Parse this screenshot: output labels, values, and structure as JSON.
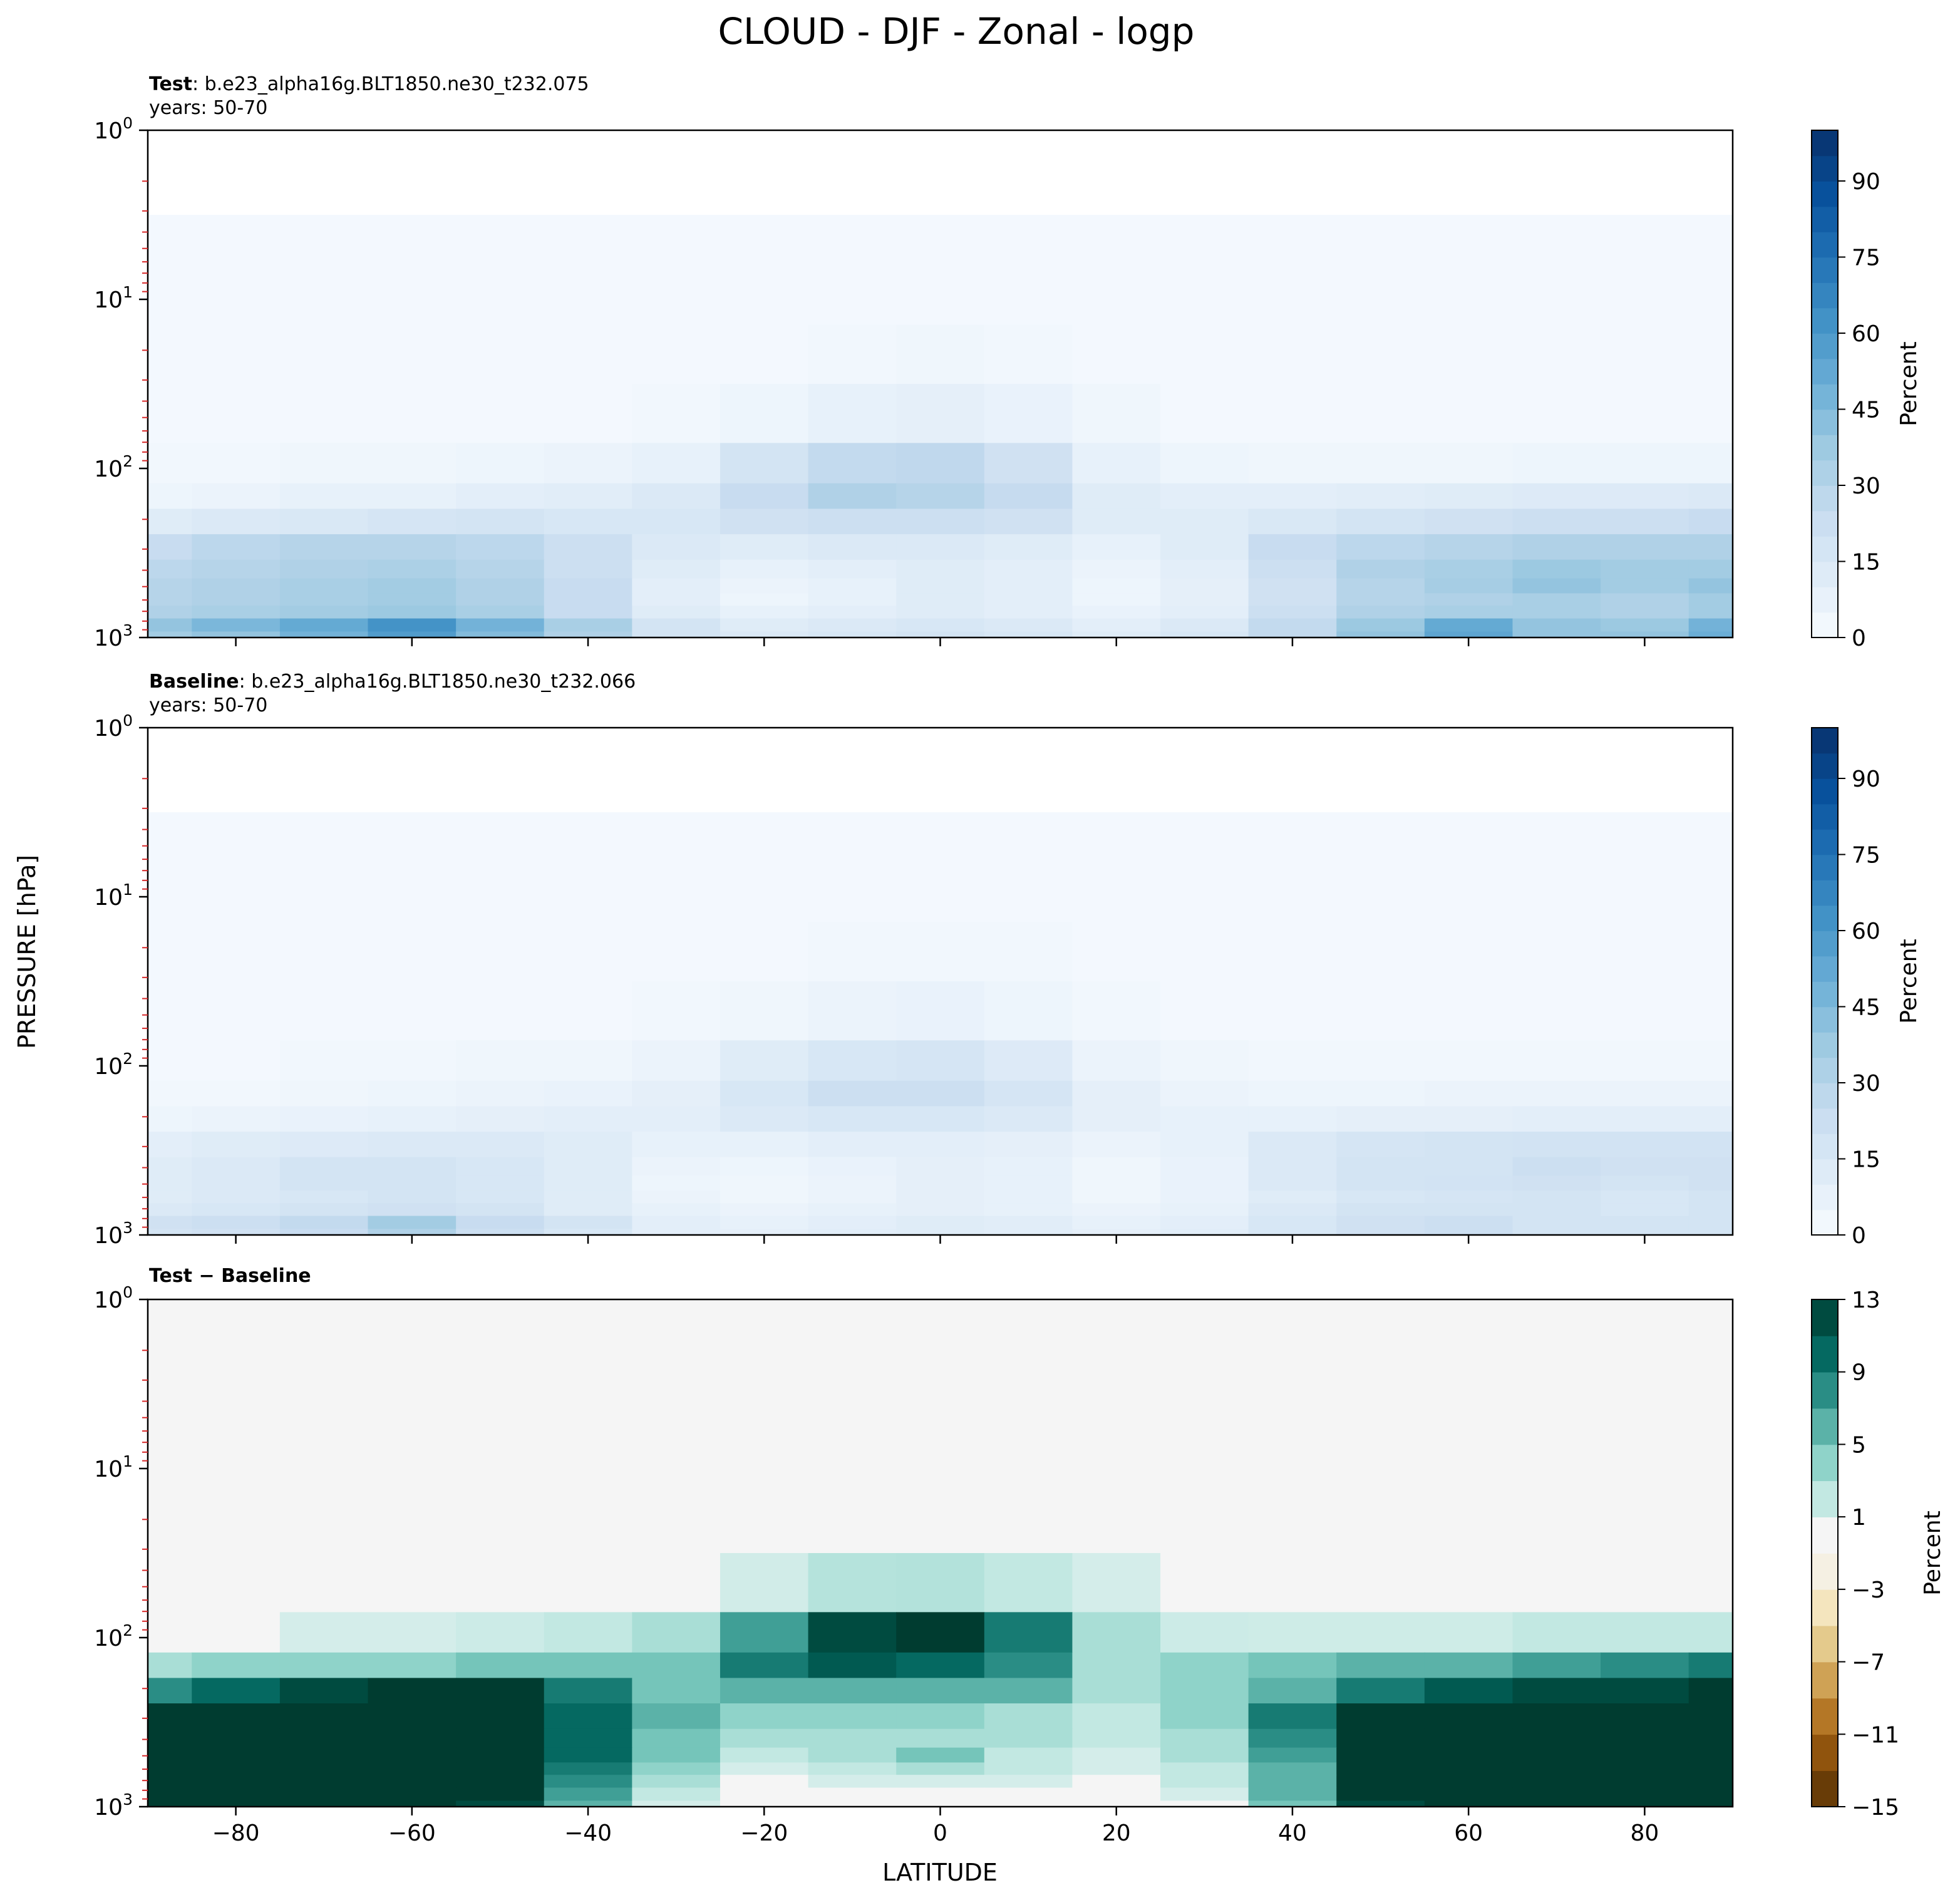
{
  "figure": {
    "title": "CLOUD - DJF - Zonal - logp",
    "shared_ylabel": "PRESSURE [hPa]",
    "shared_xlabel": "LATITUDE"
  },
  "chart_data": [
    {
      "type": "heatmap",
      "panel": "test",
      "title_bold": "Test",
      "title_rest": ": b.e23_alpha16g.BLT1850.ne30_t232.075",
      "subtitle": "years: 50-70",
      "x_ticks": [
        -80,
        -60,
        -40,
        -20,
        0,
        20,
        40,
        60,
        80
      ],
      "xlim": [
        -90,
        90
      ],
      "y_scale": "log",
      "ylim": [
        1000,
        1
      ],
      "y_ticks": [
        {
          "value": 1,
          "base": "10",
          "exp": "0"
        },
        {
          "value": 10,
          "base": "10",
          "exp": "1"
        },
        {
          "value": 100,
          "base": "10",
          "exp": "2"
        },
        {
          "value": 1000,
          "base": "10",
          "exp": "3"
        }
      ],
      "colorbar": {
        "label": "Percent",
        "ticks": [
          "0",
          "15",
          "30",
          "45",
          "60",
          "75",
          "90"
        ],
        "range": [
          0,
          100
        ],
        "colormap": "Blues"
      },
      "x": [
        -90,
        -80,
        -70,
        -60,
        -50,
        -40,
        -30,
        -20,
        -10,
        0,
        10,
        20,
        30,
        40,
        50,
        60,
        70,
        80,
        90
      ],
      "p": [
        1,
        2,
        5,
        10,
        20,
        50,
        100,
        150,
        200,
        300,
        400,
        500,
        600,
        700,
        850,
        1000
      ],
      "z": [
        [
          0,
          0,
          0,
          0,
          0,
          0,
          0,
          0,
          0,
          0,
          0,
          0,
          0,
          0,
          0,
          0,
          0,
          0,
          0
        ],
        [
          0,
          0,
          0,
          0,
          0,
          0,
          0,
          0,
          0,
          0,
          0,
          0,
          0,
          0,
          0,
          0,
          0,
          0,
          0
        ],
        [
          2,
          2,
          2,
          2,
          2,
          2,
          2,
          2,
          2,
          2,
          2,
          2,
          2,
          2,
          2,
          2,
          2,
          2,
          2
        ],
        [
          2,
          2,
          2,
          2,
          2,
          2,
          2,
          2,
          2,
          2,
          2,
          2,
          2,
          2,
          2,
          2,
          2,
          2,
          2
        ],
        [
          2,
          2,
          2,
          2,
          2,
          2,
          2,
          2,
          3,
          4,
          3,
          2,
          2,
          2,
          2,
          2,
          2,
          2,
          2
        ],
        [
          2,
          2,
          2,
          2,
          2,
          2,
          3,
          5,
          8,
          9,
          7,
          4,
          2,
          2,
          2,
          2,
          2,
          2,
          2
        ],
        [
          3,
          3,
          4,
          4,
          5,
          6,
          8,
          18,
          26,
          27,
          20,
          8,
          5,
          4,
          4,
          4,
          5,
          5,
          5
        ],
        [
          5,
          6,
          8,
          8,
          10,
          11,
          14,
          24,
          32,
          30,
          25,
          12,
          10,
          10,
          11,
          12,
          13,
          13,
          14
        ],
        [
          12,
          14,
          15,
          17,
          18,
          16,
          16,
          20,
          22,
          22,
          20,
          12,
          12,
          15,
          18,
          20,
          22,
          22,
          24
        ],
        [
          24,
          28,
          30,
          30,
          28,
          22,
          14,
          12,
          14,
          14,
          12,
          8,
          12,
          24,
          28,
          30,
          32,
          32,
          32
        ],
        [
          28,
          30,
          32,
          33,
          30,
          22,
          12,
          8,
          10,
          12,
          10,
          6,
          10,
          22,
          32,
          34,
          38,
          36,
          36
        ],
        [
          30,
          32,
          34,
          36,
          32,
          24,
          10,
          6,
          8,
          12,
          10,
          5,
          9,
          20,
          30,
          35,
          40,
          36,
          40
        ],
        [
          30,
          32,
          34,
          36,
          32,
          24,
          10,
          5,
          8,
          12,
          10,
          5,
          9,
          20,
          30,
          32,
          34,
          32,
          36
        ],
        [
          32,
          34,
          36,
          38,
          34,
          24,
          12,
          8,
          10,
          12,
          10,
          7,
          10,
          22,
          32,
          34,
          34,
          32,
          36
        ],
        [
          40,
          46,
          52,
          62,
          48,
          34,
          18,
          12,
          14,
          16,
          14,
          10,
          14,
          26,
          38,
          52,
          40,
          38,
          48
        ],
        [
          36,
          40,
          48,
          58,
          44,
          32,
          18,
          14,
          16,
          18,
          16,
          12,
          16,
          26,
          40,
          54,
          40,
          40,
          50
        ]
      ]
    },
    {
      "type": "heatmap",
      "panel": "baseline",
      "title_bold": "Baseline",
      "title_rest": ": b.e23_alpha16g.BLT1850.ne30_t232.066",
      "subtitle": "years: 50-70",
      "x_ticks": [
        -80,
        -60,
        -40,
        -20,
        0,
        20,
        40,
        60,
        80
      ],
      "xlim": [
        -90,
        90
      ],
      "y_scale": "log",
      "ylim": [
        1000,
        1
      ],
      "y_ticks": [
        {
          "value": 1,
          "base": "10",
          "exp": "0"
        },
        {
          "value": 10,
          "base": "10",
          "exp": "1"
        },
        {
          "value": 100,
          "base": "10",
          "exp": "2"
        },
        {
          "value": 1000,
          "base": "10",
          "exp": "3"
        }
      ],
      "colorbar": {
        "label": "Percent",
        "ticks": [
          "0",
          "15",
          "30",
          "45",
          "60",
          "75",
          "90"
        ],
        "range": [
          0,
          100
        ],
        "colormap": "Blues"
      },
      "x": [
        -90,
        -80,
        -70,
        -60,
        -50,
        -40,
        -30,
        -20,
        -10,
        0,
        10,
        20,
        30,
        40,
        50,
        60,
        70,
        80,
        90
      ],
      "p": [
        1,
        2,
        5,
        10,
        20,
        50,
        100,
        150,
        200,
        300,
        400,
        500,
        600,
        700,
        850,
        1000
      ],
      "z": [
        [
          0,
          0,
          0,
          0,
          0,
          0,
          0,
          0,
          0,
          0,
          0,
          0,
          0,
          0,
          0,
          0,
          0,
          0,
          0
        ],
        [
          0,
          0,
          0,
          0,
          0,
          0,
          0,
          0,
          0,
          0,
          0,
          0,
          0,
          0,
          0,
          0,
          0,
          0,
          0
        ],
        [
          2,
          2,
          2,
          2,
          2,
          2,
          2,
          2,
          2,
          2,
          2,
          2,
          2,
          2,
          2,
          2,
          2,
          2,
          2
        ],
        [
          2,
          2,
          2,
          2,
          2,
          2,
          2,
          2,
          2,
          2,
          2,
          2,
          2,
          2,
          2,
          2,
          2,
          2,
          2
        ],
        [
          2,
          2,
          2,
          2,
          2,
          2,
          2,
          2,
          3,
          3,
          3,
          2,
          2,
          2,
          2,
          2,
          2,
          2,
          2
        ],
        [
          2,
          2,
          2,
          2,
          2,
          2,
          3,
          4,
          6,
          7,
          5,
          3,
          2,
          2,
          2,
          2,
          2,
          2,
          2
        ],
        [
          2,
          2,
          3,
          3,
          4,
          4,
          6,
          12,
          16,
          17,
          13,
          6,
          4,
          3,
          3,
          3,
          3,
          3,
          3
        ],
        [
          3,
          3,
          4,
          5,
          6,
          7,
          9,
          16,
          22,
          22,
          17,
          9,
          6,
          5,
          5,
          6,
          6,
          6,
          6
        ],
        [
          5,
          6,
          7,
          8,
          9,
          10,
          10,
          14,
          16,
          16,
          14,
          9,
          8,
          8,
          9,
          9,
          10,
          10,
          10
        ],
        [
          10,
          12,
          13,
          14,
          14,
          12,
          8,
          8,
          10,
          10,
          9,
          6,
          8,
          14,
          17,
          18,
          19,
          19,
          19
        ],
        [
          12,
          14,
          18,
          18,
          16,
          12,
          6,
          5,
          7,
          9,
          8,
          4,
          7,
          14,
          18,
          18,
          22,
          20,
          20
        ],
        [
          12,
          14,
          18,
          18,
          16,
          12,
          5,
          4,
          6,
          9,
          8,
          4,
          7,
          14,
          18,
          19,
          20,
          18,
          20
        ],
        [
          12,
          14,
          16,
          18,
          16,
          12,
          6,
          4,
          6,
          9,
          8,
          4,
          7,
          12,
          16,
          17,
          18,
          16,
          18
        ],
        [
          14,
          16,
          18,
          20,
          18,
          12,
          8,
          6,
          8,
          9,
          8,
          6,
          8,
          14,
          18,
          18,
          18,
          16,
          18
        ],
        [
          20,
          22,
          26,
          36,
          24,
          18,
          10,
          8,
          10,
          12,
          11,
          8,
          10,
          16,
          20,
          22,
          18,
          18,
          18
        ],
        [
          18,
          20,
          24,
          32,
          22,
          16,
          10,
          9,
          11,
          12,
          11,
          9,
          11,
          16,
          20,
          22,
          18,
          18,
          18
        ]
      ]
    },
    {
      "type": "heatmap",
      "panel": "difference",
      "title_bold": "Test",
      "title_mid": " − ",
      "title_bold2": "Baseline",
      "x_ticks": [
        -80,
        -60,
        -40,
        -20,
        0,
        20,
        40,
        60,
        80
      ],
      "x_tick_labels": [
        "−80",
        "−60",
        "−40",
        "−20",
        "0",
        "20",
        "40",
        "60",
        "80"
      ],
      "xlim": [
        -90,
        90
      ],
      "y_scale": "log",
      "ylim": [
        1000,
        1
      ],
      "y_ticks": [
        {
          "value": 1,
          "base": "10",
          "exp": "0"
        },
        {
          "value": 10,
          "base": "10",
          "exp": "1"
        },
        {
          "value": 100,
          "base": "10",
          "exp": "2"
        },
        {
          "value": 1000,
          "base": "10",
          "exp": "3"
        }
      ],
      "colorbar": {
        "label": "Percent",
        "ticks": [
          "13",
          "9",
          "5",
          "1",
          "−3",
          "−7",
          "−11",
          "−15"
        ],
        "range": [
          -15,
          13
        ],
        "colormap": "BrBG"
      },
      "x": [
        -90,
        -80,
        -70,
        -60,
        -50,
        -40,
        -30,
        -20,
        -10,
        0,
        10,
        20,
        30,
        40,
        50,
        60,
        70,
        80,
        90
      ],
      "p": [
        1,
        2,
        5,
        10,
        20,
        50,
        100,
        150,
        200,
        300,
        400,
        500,
        600,
        700,
        850,
        1000
      ],
      "z": [
        [
          0,
          0,
          0,
          0,
          0,
          0,
          0,
          0,
          0,
          0,
          0,
          0,
          0,
          0,
          0,
          0,
          0,
          0,
          0
        ],
        [
          0,
          0,
          0,
          0,
          0,
          0,
          0,
          0,
          0,
          0,
          0,
          0,
          0,
          0,
          0,
          0,
          0,
          0,
          0
        ],
        [
          0.2,
          0.2,
          0.2,
          0.2,
          0.2,
          0.2,
          0.2,
          0.2,
          0.2,
          0.2,
          0.2,
          0.2,
          0.2,
          0.2,
          0.2,
          0.2,
          0.2,
          0.2,
          0.2
        ],
        [
          0.2,
          0.2,
          0.2,
          0.2,
          0.2,
          0.2,
          0.2,
          0.2,
          0.2,
          0.2,
          0.2,
          0.2,
          0.2,
          0.2,
          0.2,
          0.2,
          0.2,
          0.2,
          0.2
        ],
        [
          0.3,
          0.3,
          0.3,
          0.3,
          0.3,
          0.3,
          0.3,
          0.5,
          0.6,
          0.6,
          0.5,
          0.3,
          0.3,
          0.3,
          0.3,
          0.3,
          0.3,
          0.3,
          0.3
        ],
        [
          0.4,
          0.4,
          0.4,
          0.4,
          0.4,
          0.5,
          0.6,
          1.2,
          2.5,
          2.6,
          2,
          1,
          0.5,
          0.5,
          0.5,
          0.5,
          0.5,
          0.5,
          0.5
        ],
        [
          0.6,
          0.8,
          1,
          1,
          1.5,
          2,
          3,
          7,
          12,
          14,
          9,
          3,
          1.5,
          1.4,
          1.4,
          1.4,
          2,
          2,
          2
        ],
        [
          3,
          4,
          4,
          4,
          5,
          5,
          5,
          9,
          11,
          10,
          8,
          3,
          4,
          5,
          6,
          6,
          7,
          8,
          9
        ],
        [
          8,
          10,
          12,
          13,
          14,
          9,
          5,
          6,
          6,
          6,
          6,
          3,
          4,
          6,
          9,
          11,
          12,
          12,
          14
        ],
        [
          15,
          17,
          18,
          17,
          15,
          10,
          6,
          4,
          4,
          4,
          3,
          2,
          4,
          9,
          13,
          16,
          17,
          17,
          18
        ],
        [
          16,
          17,
          15,
          15,
          14,
          10,
          5,
          3,
          3,
          3,
          3,
          2,
          3,
          8,
          14,
          16,
          16,
          16,
          16
        ],
        [
          14,
          16,
          16,
          16,
          14,
          10,
          5,
          2,
          3,
          5,
          2,
          1,
          3,
          7,
          13,
          15,
          15,
          15,
          15
        ],
        [
          14,
          15,
          16,
          16,
          13,
          9,
          4,
          1,
          2,
          3,
          2,
          1,
          2,
          6,
          13,
          14,
          14,
          14,
          14
        ],
        [
          14,
          15,
          16,
          16,
          13,
          8,
          3,
          0.5,
          1,
          1,
          1,
          0.5,
          2,
          6,
          13,
          14,
          14,
          14,
          14
        ],
        [
          14,
          15,
          16,
          15,
          13,
          7,
          2,
          0,
          -0.5,
          -0.5,
          -0.5,
          0,
          1,
          6,
          13,
          14,
          14,
          14,
          14
        ],
        [
          14,
          15,
          16,
          15,
          12,
          6,
          1,
          -0.3,
          -0.4,
          -0.8,
          -0.5,
          -0.3,
          0.5,
          5,
          12,
          14,
          14,
          14,
          14
        ]
      ]
    }
  ]
}
